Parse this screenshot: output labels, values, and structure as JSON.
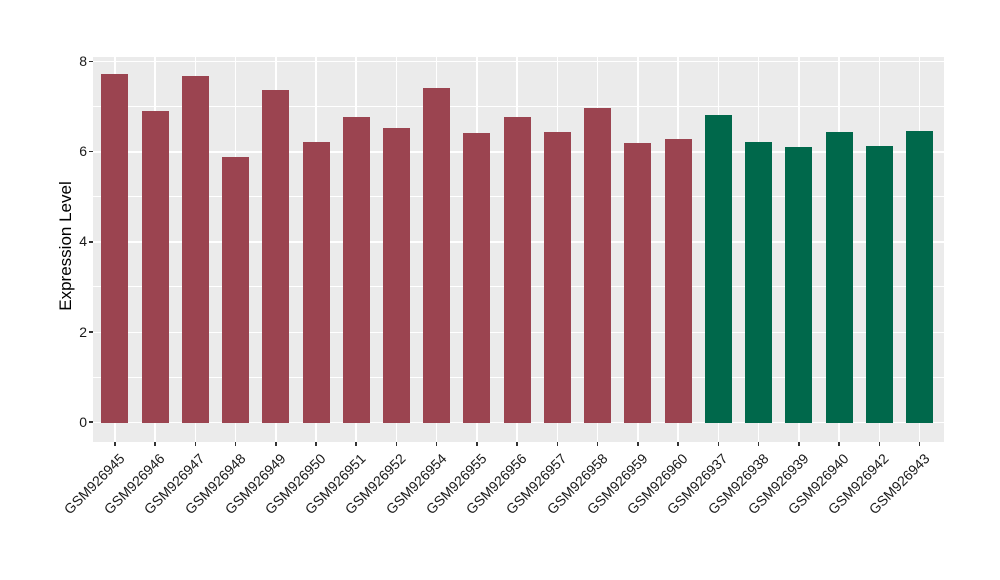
{
  "figure": {
    "background_color": "#ffffff",
    "panel_background_color": "#ebebeb",
    "gridline_color": "#ffffff",
    "tick_mark_color": "#333333",
    "text_color": "#1a1a1a"
  },
  "chart_data": {
    "type": "bar",
    "title": "",
    "xlabel": "",
    "ylabel": "Expression Level",
    "ylim": [
      0,
      8.1
    ],
    "yticks": [
      0,
      2,
      4,
      6,
      8
    ],
    "grid": "on",
    "legend": "none",
    "bar_group_colors": {
      "left_group": "#9b4450",
      "right_group": "#00684b"
    },
    "categories": [
      "GSM926945",
      "GSM926946",
      "GSM926947",
      "GSM926948",
      "GSM926949",
      "GSM926950",
      "GSM926951",
      "GSM926952",
      "GSM926954",
      "GSM926955",
      "GSM926956",
      "GSM926957",
      "GSM926958",
      "GSM926959",
      "GSM926960",
      "GSM926937",
      "GSM926938",
      "GSM926939",
      "GSM926940",
      "GSM926942",
      "GSM926943"
    ],
    "values": [
      7.72,
      6.89,
      7.67,
      5.88,
      7.35,
      6.21,
      6.76,
      6.51,
      7.41,
      6.41,
      6.76,
      6.43,
      6.95,
      6.19,
      6.27,
      6.8,
      6.21,
      6.08,
      6.42,
      6.12,
      6.45
    ],
    "bars": [
      {
        "label": "GSM926945",
        "value": 7.72,
        "color": "#9b4450"
      },
      {
        "label": "GSM926946",
        "value": 6.89,
        "color": "#9b4450"
      },
      {
        "label": "GSM926947",
        "value": 7.67,
        "color": "#9b4450"
      },
      {
        "label": "GSM926948",
        "value": 5.88,
        "color": "#9b4450"
      },
      {
        "label": "GSM926949",
        "value": 7.35,
        "color": "#9b4450"
      },
      {
        "label": "GSM926950",
        "value": 6.21,
        "color": "#9b4450"
      },
      {
        "label": "GSM926951",
        "value": 6.76,
        "color": "#9b4450"
      },
      {
        "label": "GSM926952",
        "value": 6.51,
        "color": "#9b4450"
      },
      {
        "label": "GSM926954",
        "value": 7.41,
        "color": "#9b4450"
      },
      {
        "label": "GSM926955",
        "value": 6.41,
        "color": "#9b4450"
      },
      {
        "label": "GSM926956",
        "value": 6.76,
        "color": "#9b4450"
      },
      {
        "label": "GSM926957",
        "value": 6.43,
        "color": "#9b4450"
      },
      {
        "label": "GSM926958",
        "value": 6.95,
        "color": "#9b4450"
      },
      {
        "label": "GSM926959",
        "value": 6.19,
        "color": "#9b4450"
      },
      {
        "label": "GSM926960",
        "value": 6.27,
        "color": "#9b4450"
      },
      {
        "label": "GSM926937",
        "value": 6.8,
        "color": "#00684b"
      },
      {
        "label": "GSM926938",
        "value": 6.21,
        "color": "#00684b"
      },
      {
        "label": "GSM926939",
        "value": 6.08,
        "color": "#00684b"
      },
      {
        "label": "GSM926940",
        "value": 6.42,
        "color": "#00684b"
      },
      {
        "label": "GSM926942",
        "value": 6.12,
        "color": "#00684b"
      },
      {
        "label": "GSM926943",
        "value": 6.45,
        "color": "#00684b"
      }
    ]
  }
}
